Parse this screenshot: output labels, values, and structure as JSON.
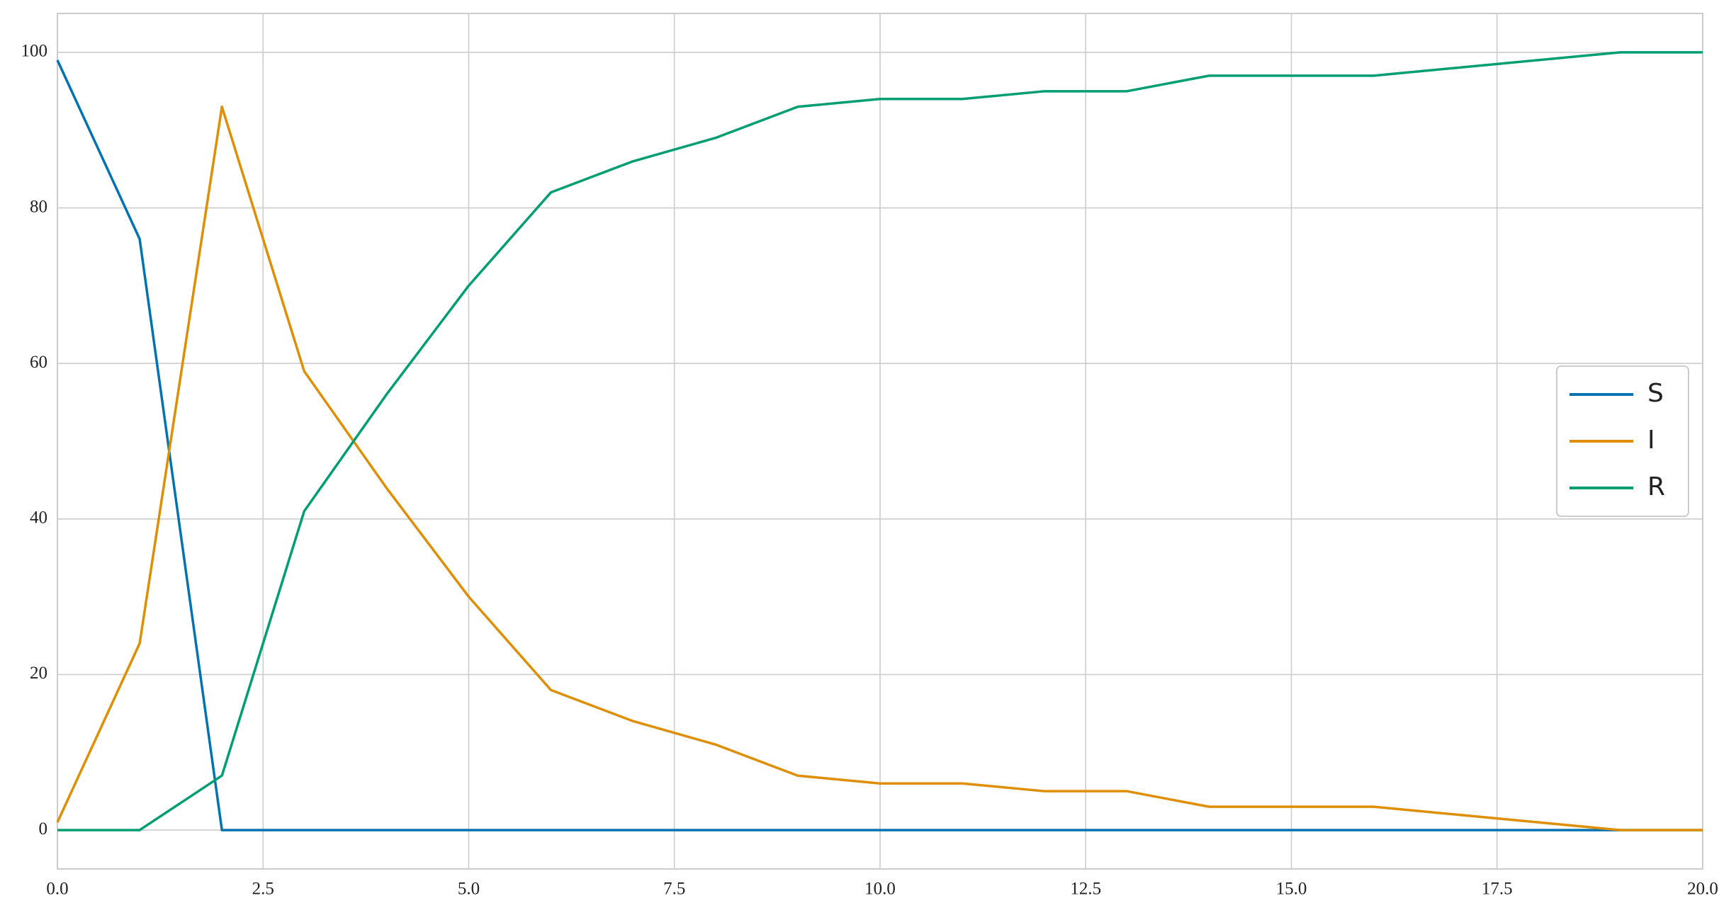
{
  "chart_data": {
    "type": "line",
    "x": [
      0,
      1,
      2,
      3,
      4,
      5,
      6,
      7,
      8,
      9,
      10,
      11,
      12,
      13,
      14,
      15,
      16,
      17,
      18,
      19,
      20
    ],
    "series": [
      {
        "name": "S",
        "color": "#0173b2",
        "values": [
          99,
          76,
          0,
          0,
          0,
          0,
          0,
          0,
          0,
          0,
          0,
          0,
          0,
          0,
          0,
          0,
          0,
          0,
          0,
          0,
          0
        ]
      },
      {
        "name": "I",
        "color": "#de8f05",
        "values": [
          1,
          24,
          93,
          59,
          44,
          30,
          18,
          14,
          11,
          7,
          6,
          6,
          5,
          5,
          3,
          3,
          3,
          2,
          1,
          0,
          0
        ]
      },
      {
        "name": "R",
        "color": "#029e73",
        "values": [
          0,
          0,
          7,
          41,
          56,
          70,
          82,
          86,
          89,
          93,
          94,
          94,
          95,
          95,
          97,
          97,
          97,
          98,
          99,
          100,
          100
        ]
      }
    ],
    "xlim": [
      0,
      20
    ],
    "xticks": [
      {
        "value": 0,
        "label": "0.0"
      },
      {
        "value": 2.5,
        "label": "2.5"
      },
      {
        "value": 5,
        "label": "5.0"
      },
      {
        "value": 7.5,
        "label": "7.5"
      },
      {
        "value": 10,
        "label": "10.0"
      },
      {
        "value": 12.5,
        "label": "12.5"
      },
      {
        "value": 15,
        "label": "15.0"
      },
      {
        "value": 17.5,
        "label": "17.5"
      },
      {
        "value": 20,
        "label": "20.0"
      }
    ],
    "ylim": [
      -5,
      105
    ],
    "yticks": [
      0,
      20,
      40,
      60,
      80,
      100
    ],
    "grid": true,
    "legend": "right"
  }
}
